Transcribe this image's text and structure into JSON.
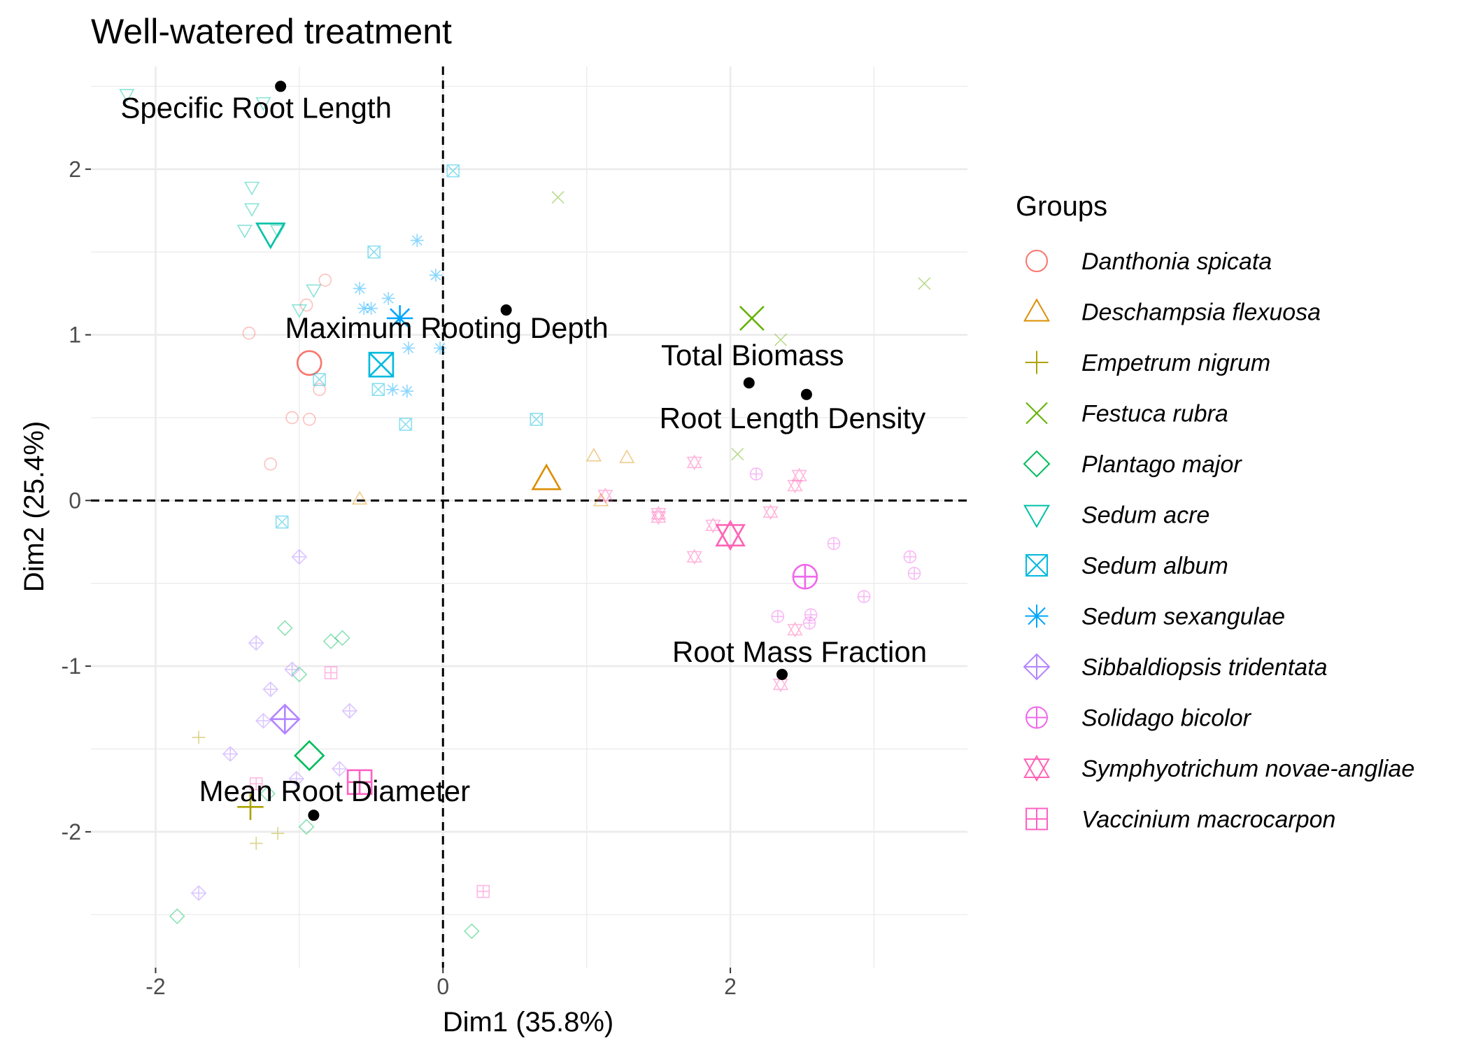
{
  "chart_data": {
    "type": "scatter",
    "title": "Well-watered treatment",
    "xlabel": "Dim1 (35.8%)",
    "ylabel": "Dim2 (25.4%)",
    "xlim": [
      -2.45,
      3.65
    ],
    "ylim": [
      -2.82,
      2.62
    ],
    "x_ticks": [
      -2,
      0,
      2
    ],
    "x_tick_labels": [
      "-2",
      "0",
      "2"
    ],
    "y_ticks": [
      -2,
      -1,
      0,
      1,
      2
    ],
    "y_tick_labels": [
      "-2",
      "-1",
      "0",
      "1",
      "2"
    ],
    "grid": true,
    "reference_lines": {
      "x": 0,
      "y": 0,
      "style": "dashed"
    },
    "legend": {
      "title": "Groups",
      "position": "right"
    },
    "groups": [
      {
        "name": "Danthonia spicata",
        "shape": "circle-open",
        "color": "#F8766D",
        "centroid": [
          -0.93,
          0.83
        ],
        "points": [
          [
            -0.82,
            1.33
          ],
          [
            -0.95,
            1.18
          ],
          [
            -1.35,
            1.01
          ],
          [
            -1.05,
            0.5
          ],
          [
            -0.93,
            0.49
          ],
          [
            -1.2,
            0.22
          ],
          [
            -0.86,
            0.67
          ]
        ]
      },
      {
        "name": "Deschampsia flexuosa",
        "shape": "triangle-open",
        "color": "#DB8E00",
        "centroid": [
          0.72,
          0.13
        ],
        "points": [
          [
            1.05,
            0.27
          ],
          [
            1.28,
            0.26
          ],
          [
            -0.58,
            0.01
          ],
          [
            1.1,
            0.0
          ]
        ]
      },
      {
        "name": "Empetrum nigrum",
        "shape": "plus",
        "color": "#AEA200",
        "centroid": [
          -1.34,
          -1.85
        ],
        "points": [
          [
            -1.7,
            -1.43
          ],
          [
            -1.3,
            -2.07
          ],
          [
            -1.15,
            -2.01
          ]
        ]
      },
      {
        "name": "Festuca rubra",
        "shape": "cross",
        "color": "#64B200",
        "centroid": [
          2.15,
          1.1
        ],
        "points": [
          [
            0.8,
            1.83
          ],
          [
            3.35,
            1.31
          ],
          [
            2.35,
            0.97
          ],
          [
            2.05,
            0.28
          ]
        ]
      },
      {
        "name": "Plantago major",
        "shape": "diamond-open",
        "color": "#00BD5C",
        "centroid": [
          -0.93,
          -1.54
        ],
        "points": [
          [
            -1.1,
            -0.77
          ],
          [
            -0.7,
            -0.83
          ],
          [
            -0.78,
            -0.85
          ],
          [
            -1.0,
            -1.05
          ],
          [
            -1.22,
            -1.77
          ],
          [
            -0.95,
            -1.97
          ],
          [
            -1.85,
            -2.51
          ],
          [
            0.2,
            -2.6
          ]
        ]
      },
      {
        "name": "Sedum acre",
        "shape": "triangle-down-open",
        "color": "#00C1A7",
        "centroid": [
          -1.2,
          1.61
        ],
        "points": [
          [
            -2.2,
            2.45
          ],
          [
            -1.25,
            2.4
          ],
          [
            -1.33,
            1.89
          ],
          [
            -1.33,
            1.76
          ],
          [
            -1.38,
            1.63
          ],
          [
            -1.15,
            1.63
          ],
          [
            -0.9,
            1.27
          ],
          [
            -1.0,
            1.15
          ]
        ]
      },
      {
        "name": "Sedum album",
        "shape": "square-cross",
        "color": "#00BADE",
        "centroid": [
          -0.43,
          0.82
        ],
        "points": [
          [
            0.07,
            1.99
          ],
          [
            -0.48,
            1.5
          ],
          [
            -0.86,
            0.73
          ],
          [
            -0.45,
            0.67
          ],
          [
            -0.26,
            0.46
          ],
          [
            0.65,
            0.49
          ],
          [
            -1.12,
            -0.13
          ]
        ]
      },
      {
        "name": "Sedum sexangulae",
        "shape": "asterisk",
        "color": "#00A6FF",
        "centroid": [
          -0.3,
          1.1
        ],
        "points": [
          [
            -0.18,
            1.57
          ],
          [
            -0.58,
            1.28
          ],
          [
            -0.05,
            1.36
          ],
          [
            -0.38,
            1.22
          ],
          [
            -0.5,
            1.16
          ],
          [
            -0.55,
            1.16
          ],
          [
            -0.24,
            0.92
          ],
          [
            -0.02,
            0.92
          ],
          [
            -0.35,
            0.67
          ],
          [
            -0.25,
            0.66
          ]
        ]
      },
      {
        "name": "Sibbaldiopsis tridentata",
        "shape": "diamond-plus",
        "color": "#B385FF",
        "centroid": [
          -1.1,
          -1.32
        ],
        "points": [
          [
            -1.0,
            -0.34
          ],
          [
            -1.3,
            -0.86
          ],
          [
            -1.05,
            -1.02
          ],
          [
            -1.2,
            -1.14
          ],
          [
            -0.65,
            -1.27
          ],
          [
            -1.25,
            -1.33
          ],
          [
            -1.48,
            -1.53
          ],
          [
            -0.72,
            -1.62
          ],
          [
            -1.02,
            -1.68
          ],
          [
            -1.7,
            -2.37
          ]
        ]
      },
      {
        "name": "Solidago bicolor",
        "shape": "circle-plus",
        "color": "#EF67EB",
        "centroid": [
          2.52,
          -0.46
        ],
        "points": [
          [
            2.18,
            0.16
          ],
          [
            2.72,
            -0.26
          ],
          [
            3.25,
            -0.34
          ],
          [
            3.28,
            -0.44
          ],
          [
            2.93,
            -0.58
          ],
          [
            2.33,
            -0.7
          ],
          [
            2.56,
            -0.69
          ],
          [
            2.55,
            -0.74
          ]
        ]
      },
      {
        "name": "Symphyotrichum novae-angliae",
        "shape": "star-of-david",
        "color": "#FF63B6",
        "centroid": [
          2.0,
          -0.21
        ],
        "points": [
          [
            1.75,
            0.23
          ],
          [
            2.48,
            0.15
          ],
          [
            2.45,
            0.09
          ],
          [
            1.13,
            0.03
          ],
          [
            1.5,
            -0.08
          ],
          [
            1.5,
            -0.1
          ],
          [
            1.88,
            -0.15
          ],
          [
            2.28,
            -0.07
          ],
          [
            1.75,
            -0.34
          ],
          [
            2.45,
            -0.78
          ],
          [
            2.35,
            -1.11
          ]
        ]
      },
      {
        "name": "Vaccinium macrocarpon",
        "shape": "square-plus",
        "color": "#FF61C3",
        "centroid": [
          -0.58,
          -1.7
        ],
        "points": [
          [
            -0.78,
            -1.04
          ],
          [
            -1.3,
            -1.71
          ],
          [
            0.28,
            -2.36
          ]
        ]
      }
    ],
    "variables": [
      {
        "label": "Specific Root Length",
        "x": -1.13,
        "y": 2.5
      },
      {
        "label": "Maximum Rooting Depth",
        "x": 0.44,
        "y": 1.15
      },
      {
        "label": "Total Biomass",
        "x": 2.13,
        "y": 0.71
      },
      {
        "label": "Root Length Density",
        "x": 2.53,
        "y": 0.64
      },
      {
        "label": "Root Mass Fraction",
        "x": 2.36,
        "y": -1.05
      },
      {
        "label": "Mean Root Diameter",
        "x": -0.9,
        "y": -1.9
      }
    ]
  }
}
